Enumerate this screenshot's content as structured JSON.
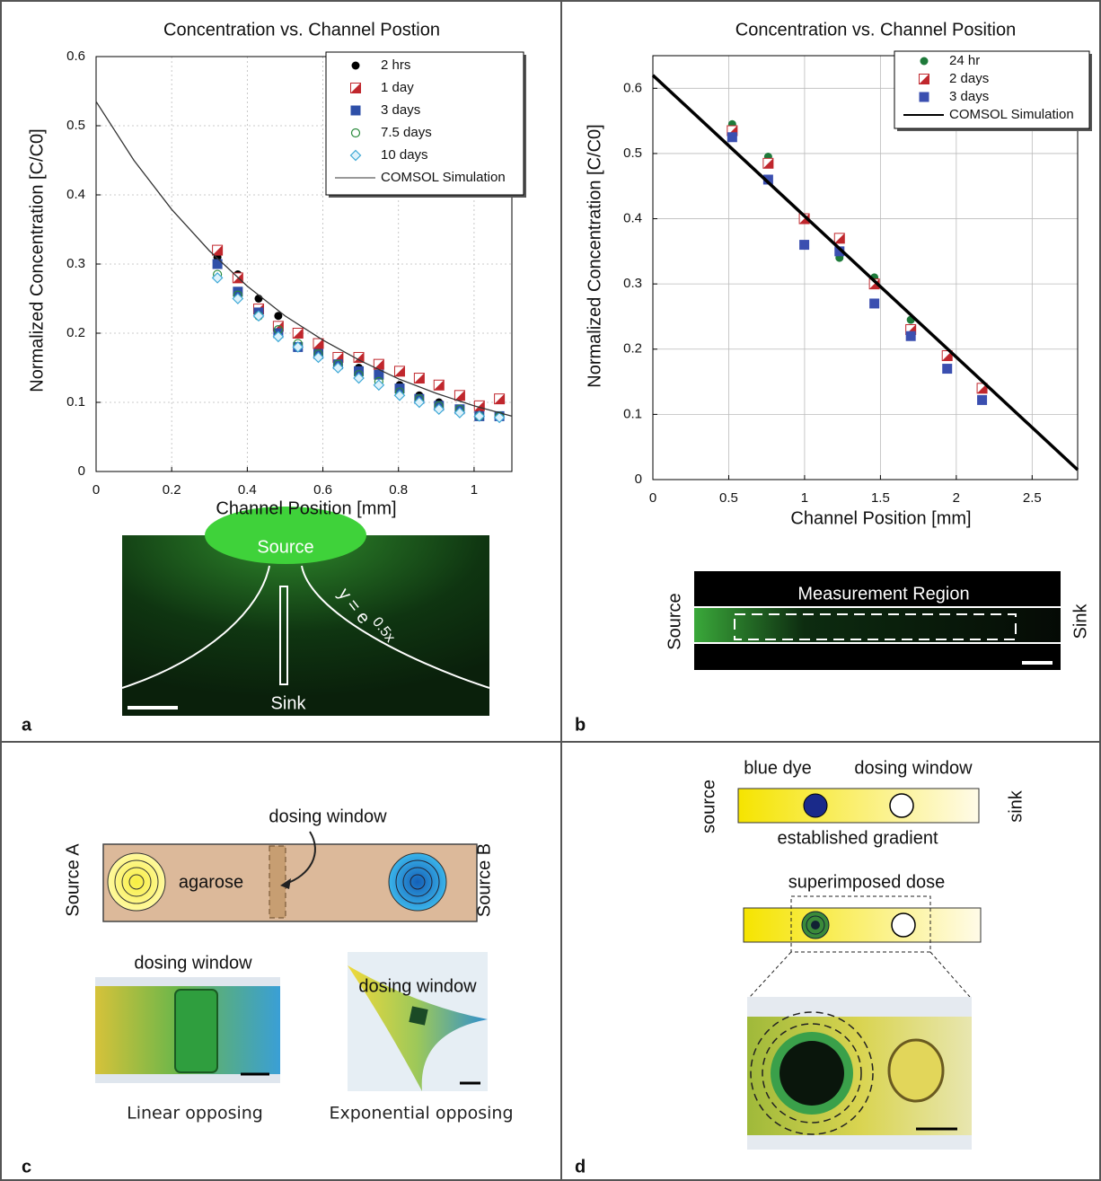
{
  "chart_data": [
    {
      "type": "scatter",
      "title": "Concentration vs. Channel Postion",
      "x_label": "Channel Position [mm]",
      "y_label": "Normalized Concentration [C/C0]",
      "xlim": [
        0,
        1.1
      ],
      "xticks": [
        0,
        0.2,
        0.4,
        0.6,
        0.8,
        1
      ],
      "ylim": [
        0,
        0.6
      ],
      "yticks": [
        0,
        0.1,
        0.2,
        0.3,
        0.4,
        0.5,
        0.6
      ],
      "grid": true,
      "legend": "upper-right",
      "series": [
        {
          "name": "2 hrs",
          "color": "#000000",
          "marker": "circle",
          "x": [
            0.321,
            0.375,
            0.43,
            0.482,
            0.534,
            0.588,
            0.64,
            0.695,
            0.748,
            0.803,
            0.855,
            0.907,
            0.962,
            1.014,
            1.067
          ],
          "values": [
            0.31,
            0.285,
            0.25,
            0.225,
            0.2,
            0.18,
            0.165,
            0.15,
            0.14,
            0.125,
            0.11,
            0.1,
            0.09,
            0.085,
            0.08
          ]
        },
        {
          "name": "1 day",
          "color": "#c0272d",
          "marker": "half-square",
          "x": [
            0.321,
            0.375,
            0.43,
            0.482,
            0.534,
            0.588,
            0.64,
            0.695,
            0.748,
            0.803,
            0.855,
            0.907,
            0.962,
            1.014,
            1.067
          ],
          "values": [
            0.32,
            0.28,
            0.235,
            0.21,
            0.2,
            0.185,
            0.165,
            0.165,
            0.155,
            0.145,
            0.135,
            0.125,
            0.11,
            0.095,
            0.105
          ]
        },
        {
          "name": "3 days",
          "color": "#2e4fa8",
          "marker": "square",
          "x": [
            0.321,
            0.375,
            0.43,
            0.482,
            0.534,
            0.588,
            0.64,
            0.695,
            0.748,
            0.803,
            0.855,
            0.907,
            0.962,
            1.014,
            1.067
          ],
          "values": [
            0.3,
            0.26,
            0.23,
            0.2,
            0.18,
            0.17,
            0.155,
            0.145,
            0.14,
            0.12,
            0.105,
            0.095,
            0.09,
            0.08,
            0.08
          ]
        },
        {
          "name": "7.5 days",
          "color": "#2a8a3c",
          "marker": "open-circle",
          "x": [
            0.321,
            0.375,
            0.43,
            0.482,
            0.534,
            0.588,
            0.64,
            0.695,
            0.748,
            0.803,
            0.855,
            0.907,
            0.962,
            1.014,
            1.067
          ],
          "values": [
            0.285,
            0.255,
            0.225,
            0.205,
            0.185,
            0.17,
            0.155,
            0.14,
            0.13,
            0.115,
            0.105,
            0.095,
            0.09,
            0.08,
            0.08
          ]
        },
        {
          "name": "10 days",
          "color": "#3fa9d6",
          "marker": "open-diamond",
          "x": [
            0.321,
            0.375,
            0.43,
            0.482,
            0.534,
            0.588,
            0.64,
            0.695,
            0.748,
            0.803,
            0.855,
            0.907,
            0.962,
            1.014,
            1.067
          ],
          "values": [
            0.28,
            0.25,
            0.225,
            0.195,
            0.18,
            0.165,
            0.15,
            0.135,
            0.125,
            0.11,
            0.1,
            0.09,
            0.085,
            0.08,
            0.078
          ]
        },
        {
          "name": "COMSOL Simulation",
          "color": "#333333",
          "marker": "line",
          "x": [
            0,
            0.1,
            0.2,
            0.3,
            0.4,
            0.5,
            0.6,
            0.7,
            0.8,
            0.9,
            1,
            1.1
          ],
          "values": [
            0.535,
            0.45,
            0.379,
            0.319,
            0.268,
            0.225,
            0.19,
            0.16,
            0.134,
            0.113,
            0.095,
            0.08
          ]
        }
      ]
    },
    {
      "type": "scatter",
      "title": "Concentration vs. Channel Position",
      "x_label": "Channel Position [mm]",
      "y_label": "Normalized Concentration [C/C0]",
      "xlim": [
        0,
        2.8
      ],
      "xticks": [
        0,
        0.5,
        1,
        1.5,
        2,
        2.5
      ],
      "ylim": [
        0,
        0.65
      ],
      "yticks": [
        0,
        0.1,
        0.2,
        0.3,
        0.4,
        0.5,
        0.6
      ],
      "grid": true,
      "legend": "upper-right",
      "series": [
        {
          "name": "24 hr",
          "color": "#1e7a3a",
          "marker": "circle",
          "x": [
            0.523,
            0.76,
            0.998,
            1.23,
            1.46,
            1.7,
            1.94,
            2.17
          ],
          "values": [
            0.545,
            0.495,
            0.4,
            0.34,
            0.31,
            0.245,
            0.19,
            0.14
          ]
        },
        {
          "name": "2 days",
          "color": "#c0272d",
          "marker": "half-square",
          "x": [
            0.523,
            0.76,
            0.998,
            1.23,
            1.46,
            1.7,
            1.94,
            2.17
          ],
          "values": [
            0.535,
            0.485,
            0.4,
            0.37,
            0.3,
            0.23,
            0.19,
            0.14
          ]
        },
        {
          "name": "3 days",
          "color": "#3b4fb0",
          "marker": "square",
          "x": [
            0.523,
            0.76,
            0.998,
            1.23,
            1.46,
            1.7,
            1.94,
            2.17
          ],
          "values": [
            0.525,
            0.46,
            0.36,
            0.35,
            0.27,
            0.22,
            0.17,
            0.122
          ]
        },
        {
          "name": "COMSOL Simulation",
          "color": "#000000",
          "marker": "line",
          "x": [
            0,
            2.8
          ],
          "values": [
            0.62,
            0.015
          ]
        }
      ]
    }
  ],
  "panel_labels": [
    "a",
    "b",
    "c",
    "d"
  ],
  "panel_a_image": {
    "source": "Source",
    "sink": "Sink",
    "equation_base": "y = e",
    "equation_exponent": "0.5x"
  },
  "panel_b_image": {
    "region": "Measurement Region",
    "source": "Source",
    "sink": "Sink"
  },
  "panel_c": {
    "arrow_label": "dosing window",
    "source_a": "Source A",
    "medium": "agarose",
    "source_b": "Source B",
    "photo_1_label": "dosing window",
    "photo_2_label": "dosing window",
    "photo_1_caption": "Linear opposing",
    "photo_2_caption": "Exponential opposing"
  },
  "panel_d": {
    "dye": "blue dye",
    "window": "dosing window",
    "source": "source",
    "sink": "sink",
    "gradient": "established gradient",
    "dose": "superimposed dose"
  }
}
